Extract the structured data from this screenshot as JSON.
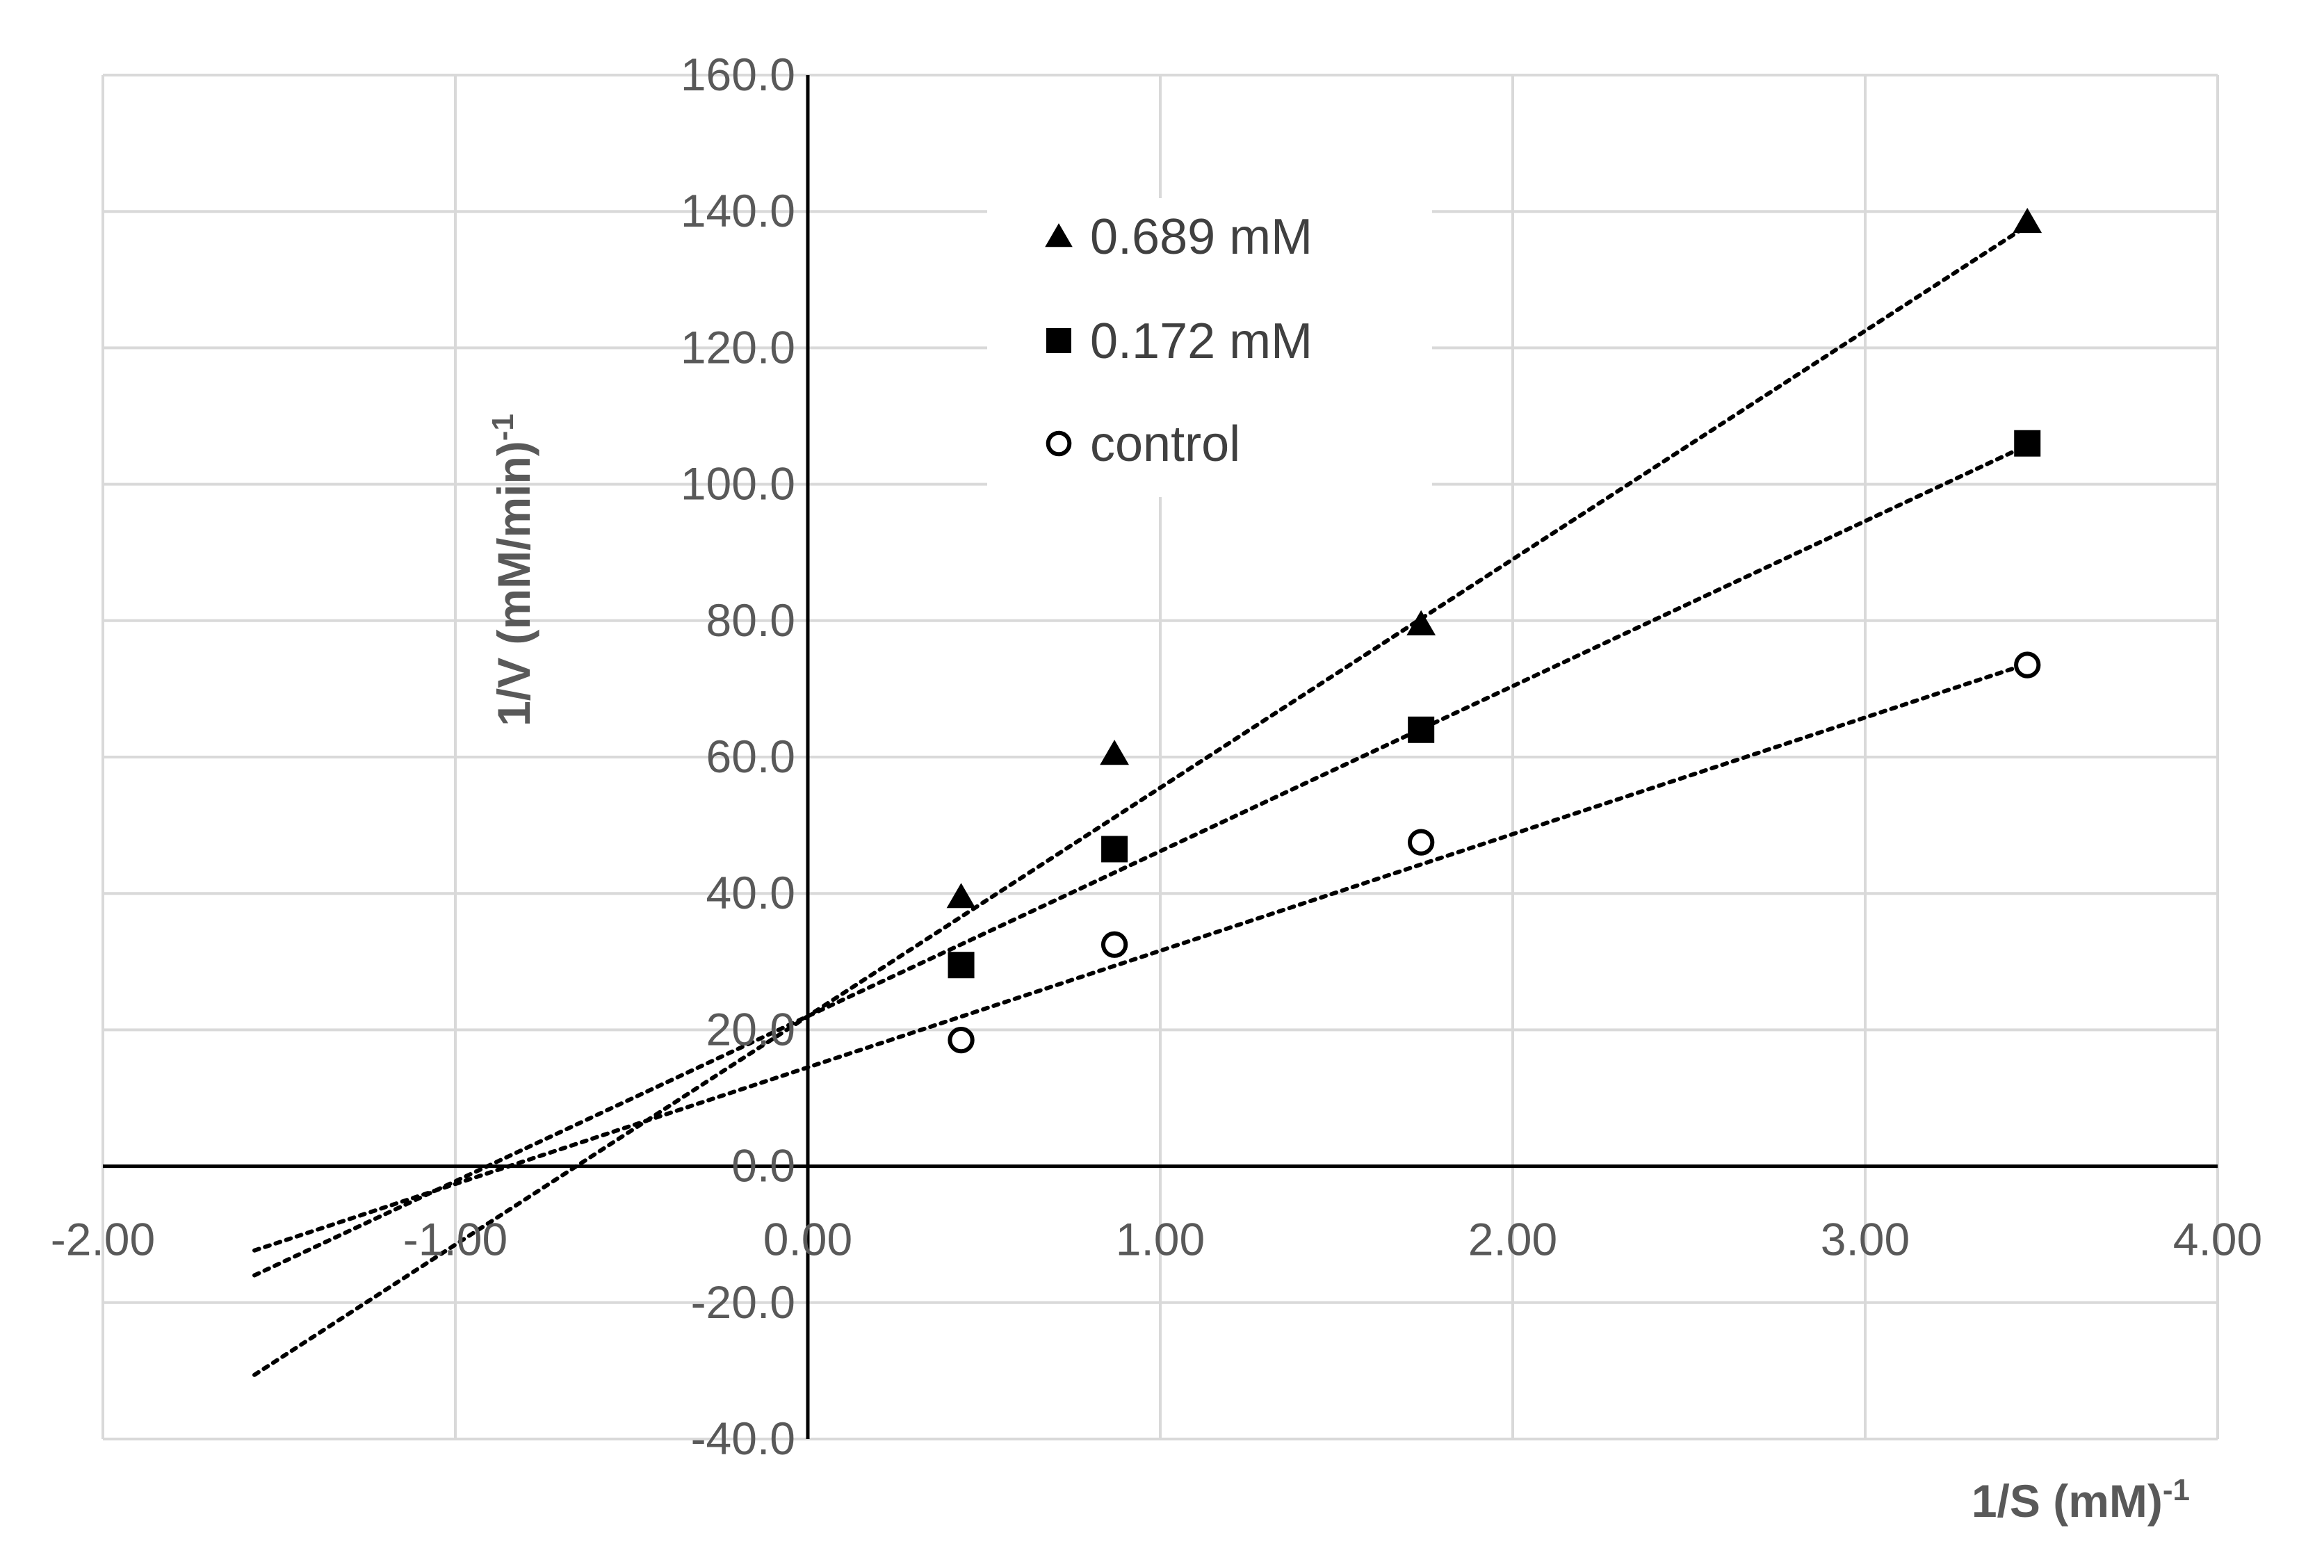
{
  "chart_data": {
    "type": "scatter",
    "title": "",
    "xlabel": "1/S (mM)",
    "xlabel_superscript": "-1",
    "ylabel": "1/V (mM/min)",
    "ylabel_superscript": "-1",
    "xlim": [
      -2.0,
      4.0
    ],
    "ylim": [
      -40.0,
      160.0
    ],
    "xticks": [
      -2.0,
      -1.0,
      0.0,
      1.0,
      2.0,
      3.0,
      4.0
    ],
    "xtick_labels": [
      "-2.00",
      "-1.00",
      "0.00",
      "1.00",
      "2.00",
      "3.00",
      "4.00"
    ],
    "yticks": [
      -40.0,
      -20.0,
      0.0,
      20.0,
      40.0,
      60.0,
      80.0,
      100.0,
      120.0,
      140.0,
      160.0
    ],
    "ytick_labels": [
      "-40.0",
      "-20.0",
      "0.0",
      "20.0",
      "40.0",
      "60.0",
      "80.0",
      "100.0",
      "120.0",
      "140.0",
      "160.0"
    ],
    "grid": true,
    "legend_position": "top-center",
    "series": [
      {
        "name": "0.689 mM",
        "marker": "triangle",
        "x": [
          0.435,
          0.87,
          1.74,
          3.46
        ],
        "y": [
          39.5,
          60.5,
          79.5,
          138.5
        ],
        "trendline": {
          "style": "dotted",
          "x_range": [
            -1.57,
            3.46
          ],
          "slope": 33.5,
          "intercept": 22.0
        }
      },
      {
        "name": "0.172 mM",
        "marker": "square",
        "x": [
          0.435,
          0.87,
          1.74,
          3.46
        ],
        "y": [
          29.5,
          46.5,
          64.0,
          106.0
        ],
        "trendline": {
          "style": "dotted",
          "x_range": [
            -1.57,
            3.46
          ],
          "slope": 24.2,
          "intercept": 22.0
        }
      },
      {
        "name": "control",
        "marker": "open-circle",
        "x": [
          0.435,
          0.87,
          1.74,
          3.46
        ],
        "y": [
          18.5,
          32.5,
          47.5,
          73.5
        ],
        "trendline": {
          "style": "dotted",
          "x_range": [
            -1.57,
            3.46
          ],
          "slope": 17.1,
          "intercept": 14.5
        }
      }
    ]
  }
}
